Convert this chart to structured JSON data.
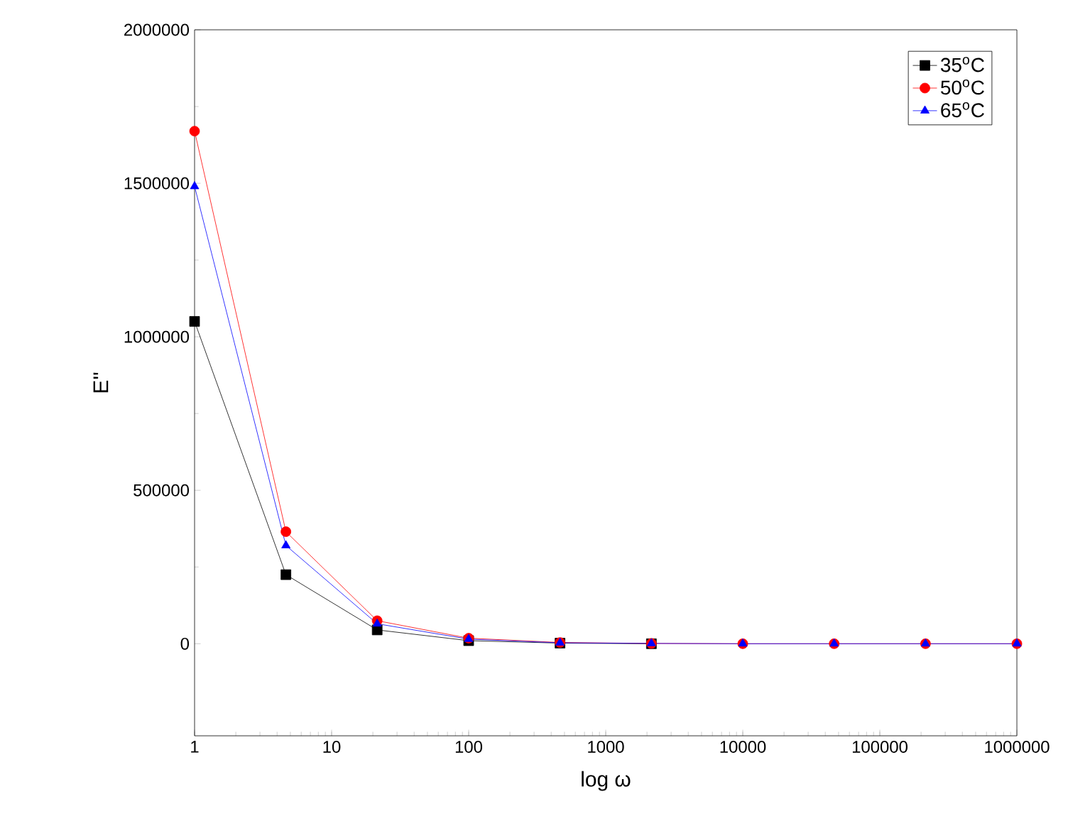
{
  "chart_data": {
    "type": "line",
    "xlabel": "log ω",
    "ylabel": "E''",
    "log": "x",
    "x": [
      1,
      4.64,
      21.5,
      100,
      464,
      2154,
      10000,
      46416,
      215443,
      1000000
    ],
    "series": [
      {
        "name": "35$^{o}$C",
        "color": "#000000",
        "marker": "square",
        "values": [
          1050000,
          225000,
          45000,
          10000,
          2000,
          0,
          null,
          null,
          null,
          null
        ]
      },
      {
        "name": "50$^{o}$C",
        "color": "#ff0000",
        "marker": "circle",
        "values": [
          1670000,
          365000,
          75000,
          18000,
          4000,
          1000,
          0,
          0,
          0,
          0
        ]
      },
      {
        "name": "65$^{o}$C",
        "color": "#0000ff",
        "marker": "triangle",
        "values": [
          1490000,
          320000,
          65000,
          15000,
          3000,
          1000,
          0,
          0,
          0,
          0
        ]
      }
    ],
    "xlim": [
      1,
      1000000
    ],
    "xticks": [
      1,
      10,
      100,
      1000,
      10000,
      100000,
      1000000
    ],
    "ylim": [
      -300000,
      2000000
    ],
    "yticks": [
      0,
      500000,
      1000000,
      1500000,
      2000000
    ],
    "legend": "top right",
    "line_style": "solid",
    "grid": false
  }
}
